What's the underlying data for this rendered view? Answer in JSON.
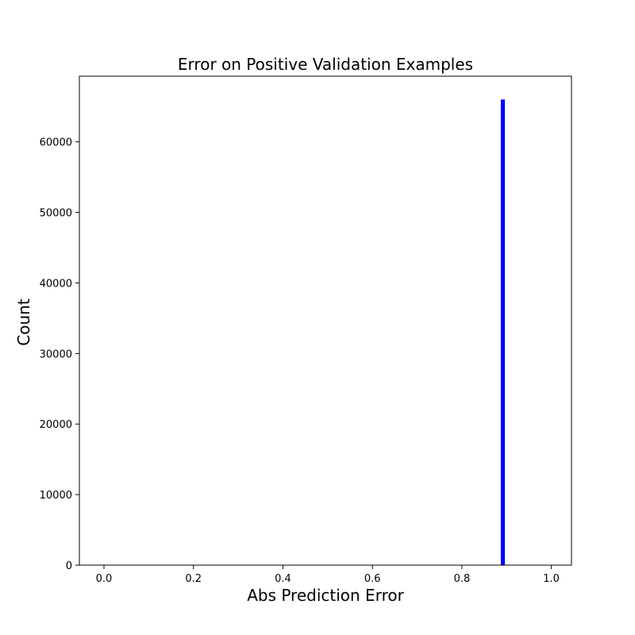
{
  "chart_data": {
    "type": "bar",
    "title": "Error on Positive Validation Examples",
    "xlabel": "Abs Prediction Error",
    "ylabel": "Count",
    "xlim": [
      -0.055,
      1.045
    ],
    "ylim": [
      0,
      69300
    ],
    "xticks": [
      0.0,
      0.2,
      0.4,
      0.6,
      0.8,
      1.0
    ],
    "xtick_labels": [
      "0.0",
      "0.2",
      "0.4",
      "0.6",
      "0.8",
      "1.0"
    ],
    "yticks": [
      0,
      10000,
      20000,
      30000,
      40000,
      50000,
      60000
    ],
    "ytick_labels": [
      "0",
      "10000",
      "20000",
      "30000",
      "40000",
      "50000",
      "60000"
    ],
    "grid": false,
    "bars": [
      {
        "x_start": 0.887,
        "x_end": 0.896,
        "value": 66000
      }
    ],
    "colors": {
      "bar": "#0000ff",
      "axes": "#000000",
      "background": "#ffffff"
    }
  }
}
